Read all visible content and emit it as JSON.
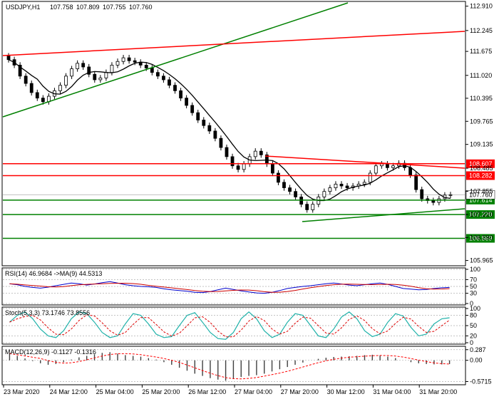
{
  "chart_data": {
    "type": "candlestick",
    "symbol_label": "USDJPY,H1",
    "ohlc_readout": {
      "open": "107.758",
      "high": "107.809",
      "low": "107.755",
      "close": "107.760"
    },
    "price_axis_ticks": [
      "112.910",
      "112.245",
      "111.675",
      "111.020",
      "110.395",
      "109.765",
      "109.135",
      "108.485",
      "107.855",
      "107.220",
      "106.590",
      "105.965"
    ],
    "price_range": [
      105.84,
      113.02
    ],
    "current_price": "107.760",
    "levels": [
      {
        "label": "108.607",
        "value": 108.607,
        "color": "#ff0000"
      },
      {
        "label": "108.282",
        "value": 108.282,
        "color": "#ff0000"
      },
      {
        "label": "107.614",
        "value": 107.614,
        "color": "#008000"
      },
      {
        "label": "107.220",
        "value": 107.22,
        "color": "#008000"
      },
      {
        "label": "106.569",
        "value": 106.569,
        "color": "#008000"
      }
    ],
    "x_ticks": [
      "23 Mar 2020",
      "24 Mar 12:00",
      "25 Mar 04:00",
      "25 Mar 20:00",
      "26 Mar 12:00",
      "27 Mar 04:00",
      "27 Mar 20:00",
      "30 Mar 12:00",
      "31 Mar 04:00",
      "31 Mar 20:00"
    ],
    "closes": [
      111.45,
      111.3,
      111.0,
      110.8,
      110.55,
      110.4,
      110.3,
      110.45,
      110.6,
      110.75,
      111.0,
      111.2,
      111.35,
      111.25,
      111.05,
      110.9,
      110.95,
      111.1,
      111.3,
      111.4,
      111.5,
      111.42,
      111.38,
      111.3,
      111.22,
      111.1,
      111.0,
      110.9,
      110.75,
      110.6,
      110.4,
      110.2,
      110.0,
      109.8,
      109.65,
      109.5,
      109.3,
      109.05,
      108.8,
      108.55,
      108.45,
      108.6,
      108.8,
      108.95,
      108.85,
      108.6,
      108.35,
      108.1,
      107.95,
      107.85,
      107.7,
      107.5,
      107.35,
      107.5,
      107.7,
      107.85,
      107.95,
      108.05,
      108.0,
      107.95,
      108.0,
      108.05,
      108.1,
      108.35,
      108.55,
      108.6,
      108.5,
      108.55,
      108.62,
      108.5,
      108.3,
      107.9,
      107.65,
      107.6,
      107.55,
      107.65,
      107.75,
      107.76
    ],
    "ma_label": "MA",
    "rsi": {
      "title": "RSI(14) 46.9684 ->MA(9) 44.5313",
      "ticks": [
        "100",
        "70",
        "50",
        "30",
        "0"
      ],
      "range": [
        0,
        100
      ],
      "values": [
        58,
        55,
        50,
        47,
        45,
        48,
        52,
        56,
        60,
        58,
        54,
        57,
        61,
        64,
        60,
        55,
        52,
        50,
        49,
        47,
        43,
        40,
        38,
        36,
        33,
        32,
        35,
        40,
        45,
        41,
        37,
        34,
        31,
        30,
        33,
        38,
        44,
        47,
        50,
        52,
        55,
        58,
        60,
        57,
        54,
        52,
        55,
        58,
        60,
        56,
        50,
        44,
        42,
        40,
        41,
        44,
        46,
        47
      ]
    },
    "stoch": {
      "title": "Stoch(5,3,3) 73.1746 73.8556",
      "ticks": [
        "100",
        "80",
        "50",
        "20",
        "0"
      ],
      "range": [
        0,
        100
      ],
      "values": [
        60,
        80,
        90,
        70,
        40,
        20,
        15,
        35,
        70,
        90,
        85,
        60,
        30,
        15,
        20,
        55,
        85,
        80,
        55,
        25,
        15,
        18,
        50,
        80,
        88,
        60,
        30,
        12,
        10,
        30,
        70,
        90,
        70,
        35,
        15,
        25,
        60,
        85,
        80,
        50,
        20,
        15,
        40,
        75,
        90,
        70,
        35,
        18,
        25,
        60,
        85,
        78,
        45,
        20,
        25,
        55,
        70,
        73
      ]
    },
    "macd": {
      "title": "MACD(12,26,9) -0.1127 -0.1316",
      "ticks": [
        "0.287",
        "0.00",
        "-0.5715"
      ],
      "range": [
        -0.62,
        0.34
      ],
      "values": [
        0.18,
        0.12,
        0.05,
        -0.02,
        -0.08,
        -0.12,
        -0.1,
        -0.05,
        0.02,
        0.08,
        0.12,
        0.16,
        0.2,
        0.22,
        0.18,
        0.14,
        0.12,
        0.1,
        0.06,
        0.02,
        -0.05,
        -0.12,
        -0.2,
        -0.28,
        -0.36,
        -0.42,
        -0.48,
        -0.52,
        -0.55,
        -0.5,
        -0.45,
        -0.42,
        -0.4,
        -0.36,
        -0.3,
        -0.24,
        -0.18,
        -0.12,
        -0.06,
        0.0,
        0.04,
        0.07,
        0.09,
        0.1,
        0.11,
        0.12,
        0.14,
        0.15,
        0.13,
        0.1,
        0.06,
        0.0,
        -0.05,
        -0.08,
        -0.1,
        -0.11,
        -0.11,
        -0.1
      ]
    }
  }
}
